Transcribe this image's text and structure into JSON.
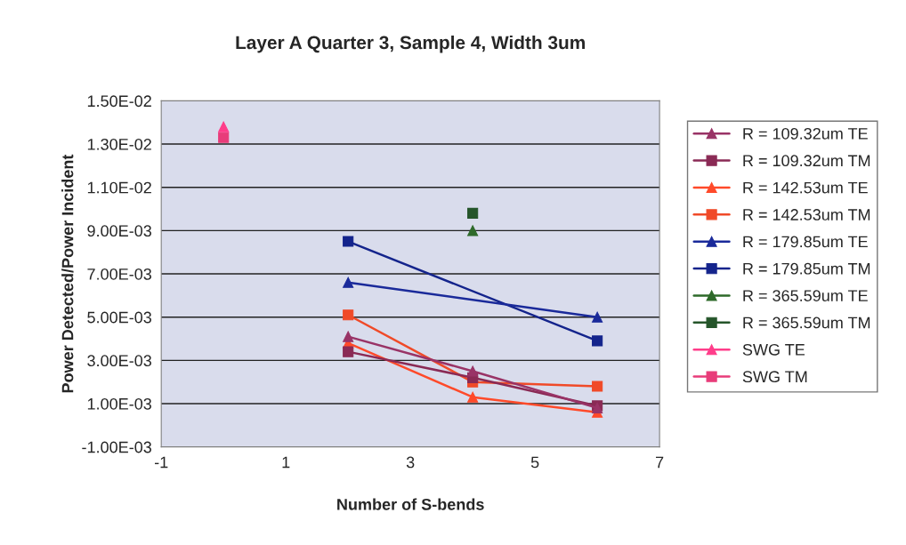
{
  "chart_data": {
    "type": "line",
    "title": "Layer A Quarter 3, Sample 4, Width 3um",
    "xlabel": "Number of S-bends",
    "ylabel": "Power Detected/Power Incident",
    "xlim": [
      -1,
      7
    ],
    "xticks": [
      -1,
      1,
      3,
      5,
      7
    ],
    "ylim": [
      -0.001,
      0.015
    ],
    "yticks": [
      {
        "value": -0.001,
        "label": "-1.00E-03"
      },
      {
        "value": 0.001,
        "label": "1.00E-03"
      },
      {
        "value": 0.003,
        "label": "3.00E-03"
      },
      {
        "value": 0.005,
        "label": "5.00E-03"
      },
      {
        "value": 0.007,
        "label": "7.00E-03"
      },
      {
        "value": 0.009,
        "label": "9.00E-03"
      },
      {
        "value": 0.011,
        "label": "1.10E-02"
      },
      {
        "value": 0.013,
        "label": "1.30E-02"
      },
      {
        "value": 0.015,
        "label": "1.50E-02"
      }
    ],
    "grid": "y",
    "legend": "right",
    "line_style": "solid",
    "series": [
      {
        "name": "R = 109.32um TE",
        "color": "#993366",
        "marker": "triangle",
        "x": [
          2,
          4,
          6
        ],
        "values": [
          0.0041,
          0.0025,
          0.0008
        ]
      },
      {
        "name": "R = 109.32um TM",
        "color": "#8a2a55",
        "marker": "square",
        "x": [
          2,
          4,
          6
        ],
        "values": [
          0.0034,
          0.0022,
          0.0009
        ]
      },
      {
        "name": "R = 142.53um TE",
        "color": "#ff4a2a",
        "marker": "triangle",
        "x": [
          2,
          4,
          6
        ],
        "values": [
          0.0038,
          0.0013,
          0.0006
        ]
      },
      {
        "name": "R = 142.53um TM",
        "color": "#f04a28",
        "marker": "square",
        "x": [
          2,
          4,
          6
        ],
        "values": [
          0.0051,
          0.002,
          0.0018
        ]
      },
      {
        "name": "R = 179.85um TE",
        "color": "#1a2a9a",
        "marker": "triangle",
        "x": [
          2,
          6
        ],
        "values": [
          0.0066,
          0.005
        ]
      },
      {
        "name": "R = 179.85um TM",
        "color": "#14248c",
        "marker": "square",
        "x": [
          2,
          6
        ],
        "values": [
          0.0085,
          0.0039
        ]
      },
      {
        "name": "R = 365.59um TE",
        "color": "#2e6a2a",
        "marker": "triangle",
        "x": [
          4
        ],
        "values": [
          0.009
        ]
      },
      {
        "name": "R = 365.59um TM",
        "color": "#25552a",
        "marker": "square",
        "x": [
          4
        ],
        "values": [
          0.0098
        ]
      },
      {
        "name": "SWG TE",
        "color": "#ff3d8a",
        "marker": "triangle",
        "x": [
          0
        ],
        "values": [
          0.0138
        ]
      },
      {
        "name": "SWG TM",
        "color": "#e83c7a",
        "marker": "square",
        "x": [
          0
        ],
        "values": [
          0.0133
        ]
      }
    ]
  }
}
